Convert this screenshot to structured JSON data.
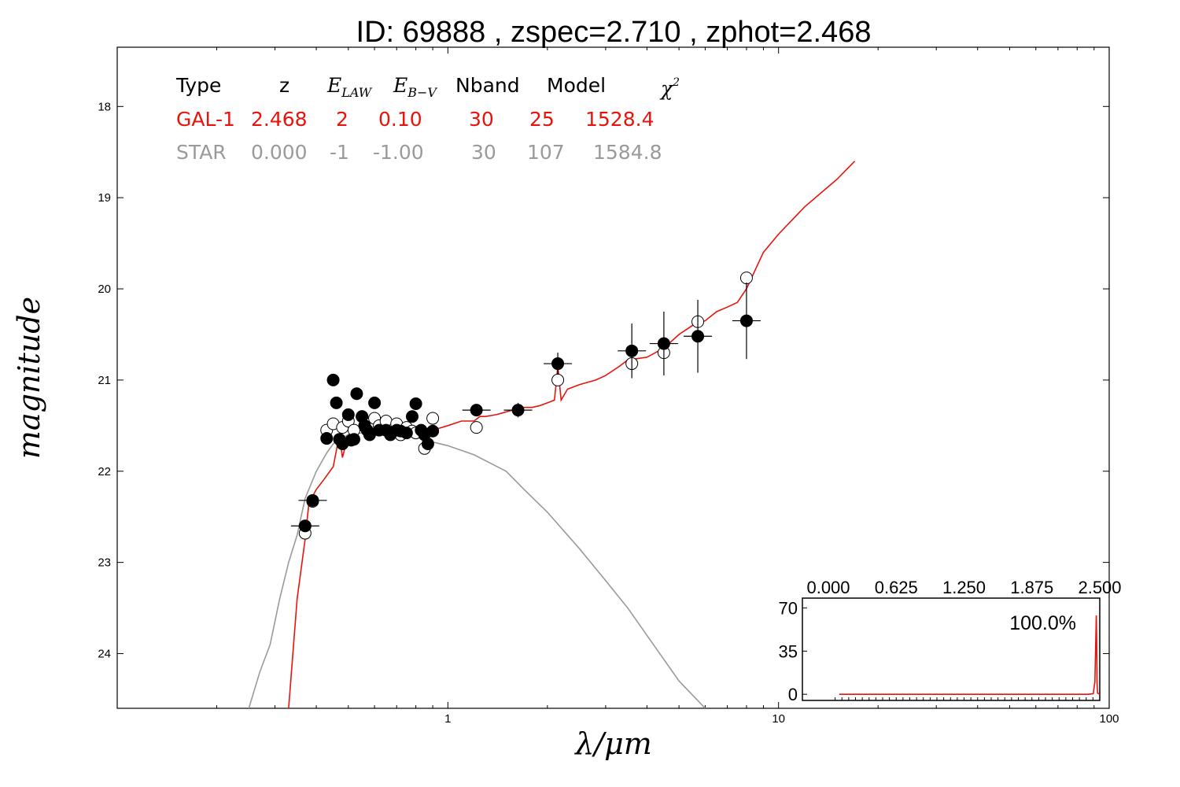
{
  "title": "ID:  69888 , zspec=2.710 , zphot=2.468",
  "axes": {
    "xlabel": "λ/μm",
    "ylabel": "magnitude",
    "x_scale": "log",
    "xlim": [
      0.1,
      100
    ],
    "ylim": [
      24.6,
      17.35
    ],
    "x_tick_labels": [
      "1",
      "10",
      "100"
    ],
    "y_tick_labels": [
      "18",
      "19",
      "20",
      "21",
      "22",
      "23",
      "24"
    ],
    "grid": false
  },
  "legend": {
    "header": [
      "Type",
      "z",
      "E_LAW",
      "E_B−V",
      "Nband",
      "Model",
      "χ²"
    ],
    "rows": [
      {
        "type": "GAL-1",
        "z": "2.468",
        "elaw": "2",
        "ebv": "0.10",
        "nband": "30",
        "model": "25",
        "chi2": "1528.4"
      },
      {
        "type": "STAR",
        "z": "0.000",
        "elaw": "-1",
        "ebv": "-1.00",
        "nband": "30",
        "model": "107",
        "chi2": "1584.8"
      }
    ]
  },
  "colors": {
    "galaxy": "#e8140c",
    "star": "#9a9a9a",
    "points": "#000000",
    "open": "#ffffff"
  },
  "chart_data": {
    "type": "scatter",
    "title": "ID:  69888 , zspec=2.710 , zphot=2.468",
    "xlabel": "λ/μm",
    "ylabel": "magnitude",
    "series": [
      {
        "name": "GAL-1",
        "kind": "line",
        "color": "#e8140c",
        "x": [
          0.33,
          0.35,
          0.37,
          0.38,
          0.4,
          0.42,
          0.45,
          0.47,
          0.48,
          0.5,
          0.55,
          0.6,
          0.65,
          0.7,
          0.8,
          0.9,
          1.0,
          1.1,
          1.2,
          1.25,
          1.3,
          1.4,
          1.5,
          1.6,
          1.7,
          1.8,
          1.9,
          2.0,
          2.1,
          2.15,
          2.2,
          2.3,
          2.5,
          2.8,
          3.0,
          3.3,
          3.5,
          4.0,
          4.5,
          5.0,
          5.5,
          6.0,
          6.5,
          7.0,
          7.5,
          8.0,
          9.0,
          10.0,
          12.0,
          15.0,
          17.0
        ],
        "y": [
          24.6,
          23.4,
          22.75,
          22.35,
          22.2,
          22.1,
          21.95,
          21.6,
          21.85,
          21.6,
          21.55,
          21.5,
          21.5,
          21.55,
          21.55,
          21.55,
          21.5,
          21.45,
          21.45,
          21.4,
          21.4,
          21.38,
          21.35,
          21.32,
          21.3,
          21.3,
          21.28,
          21.25,
          21.22,
          20.85,
          21.22,
          21.1,
          21.05,
          21.0,
          20.95,
          20.85,
          20.78,
          20.75,
          20.65,
          20.5,
          20.4,
          20.35,
          20.25,
          20.2,
          20.15,
          20.0,
          19.6,
          19.4,
          19.1,
          18.8,
          18.6
        ]
      },
      {
        "name": "STAR",
        "kind": "line",
        "color": "#9a9a9a",
        "x": [
          0.25,
          0.27,
          0.29,
          0.31,
          0.33,
          0.35,
          0.37,
          0.4,
          0.43,
          0.45,
          0.47,
          0.5,
          0.55,
          0.6,
          0.7,
          0.8,
          0.9,
          1.0,
          1.2,
          1.5,
          1.7,
          2.0,
          2.5,
          3.0,
          3.5,
          4.0,
          5.0,
          6.0
        ],
        "y": [
          24.6,
          24.2,
          23.9,
          23.4,
          23.0,
          22.7,
          22.3,
          22.0,
          21.8,
          21.7,
          21.65,
          21.6,
          21.58,
          21.56,
          21.58,
          21.62,
          21.68,
          21.72,
          21.82,
          22.0,
          22.2,
          22.45,
          22.85,
          23.2,
          23.5,
          23.8,
          24.3,
          24.6
        ]
      },
      {
        "name": "observed (filled)",
        "kind": "points",
        "x": [
          0.37,
          0.39,
          0.43,
          0.45,
          0.46,
          0.47,
          0.48,
          0.5,
          0.51,
          0.52,
          0.53,
          0.55,
          0.56,
          0.57,
          0.58,
          0.6,
          0.62,
          0.65,
          0.67,
          0.7,
          0.72,
          0.75,
          0.78,
          0.8,
          0.83,
          0.85,
          0.87,
          0.9,
          1.22,
          1.63,
          2.15,
          3.6,
          4.5,
          5.7,
          8.0
        ],
        "y": [
          22.6,
          22.32,
          21.64,
          21.0,
          21.25,
          21.65,
          21.7,
          21.38,
          21.66,
          21.65,
          21.15,
          21.4,
          21.5,
          21.55,
          21.6,
          21.25,
          21.55,
          21.55,
          21.6,
          21.55,
          21.56,
          21.58,
          21.4,
          21.26,
          21.55,
          21.6,
          21.7,
          21.56,
          21.33,
          21.33,
          20.82,
          20.68,
          20.6,
          20.52,
          20.35
        ],
        "yerr": [
          0.04,
          0.04,
          0,
          0,
          0,
          0,
          0,
          0,
          0,
          0,
          0,
          0,
          0,
          0,
          0,
          0,
          0,
          0,
          0,
          0,
          0,
          0,
          0,
          0,
          0,
          0,
          0,
          0,
          0.05,
          0.08,
          0.12,
          0.3,
          0.35,
          0.4,
          0.42
        ]
      },
      {
        "name": "model (open)",
        "kind": "points",
        "x": [
          0.37,
          0.39,
          0.43,
          0.45,
          0.48,
          0.5,
          0.52,
          0.55,
          0.58,
          0.6,
          0.62,
          0.65,
          0.68,
          0.7,
          0.72,
          0.75,
          0.78,
          0.8,
          0.85,
          0.9,
          1.22,
          2.15,
          3.6,
          4.5,
          5.7,
          8.0
        ],
        "y": [
          22.68,
          22.33,
          21.55,
          21.48,
          21.52,
          21.45,
          21.55,
          21.4,
          21.48,
          21.42,
          21.5,
          21.45,
          21.55,
          21.48,
          21.6,
          21.52,
          21.56,
          21.58,
          21.75,
          21.42,
          21.52,
          21.0,
          20.82,
          20.7,
          20.36,
          19.88
        ]
      }
    ],
    "inset": {
      "type": "line",
      "x_ticks": [
        "0.000",
        "0.625",
        "1.250",
        "1.875",
        "2.500"
      ],
      "y_ticks": [
        "70",
        "35",
        "0"
      ],
      "xlim": [
        0.0,
        2.5
      ],
      "ylim": [
        -5,
        78
      ],
      "annotation": "100.0%",
      "x": [
        0.1,
        2.3,
        2.4,
        2.44,
        2.455,
        2.462,
        2.466,
        2.468,
        2.471,
        2.475,
        2.48,
        2.5
      ],
      "y": [
        0,
        0,
        0,
        0.5,
        10,
        40,
        55,
        64,
        45,
        10,
        1,
        0
      ]
    }
  }
}
